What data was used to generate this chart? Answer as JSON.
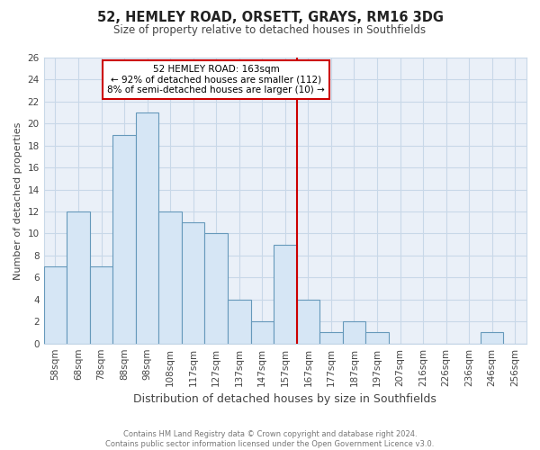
{
  "title": "52, HEMLEY ROAD, ORSETT, GRAYS, RM16 3DG",
  "subtitle": "Size of property relative to detached houses in Southfields",
  "xlabel": "Distribution of detached houses by size in Southfields",
  "ylabel": "Number of detached properties",
  "bar_labels": [
    "58sqm",
    "68sqm",
    "78sqm",
    "88sqm",
    "98sqm",
    "108sqm",
    "117sqm",
    "127sqm",
    "137sqm",
    "147sqm",
    "157sqm",
    "167sqm",
    "177sqm",
    "187sqm",
    "197sqm",
    "207sqm",
    "216sqm",
    "226sqm",
    "236sqm",
    "246sqm",
    "256sqm"
  ],
  "bar_values": [
    7,
    12,
    7,
    19,
    21,
    12,
    11,
    10,
    4,
    2,
    9,
    4,
    1,
    2,
    1,
    0,
    0,
    0,
    0,
    1,
    0
  ],
  "bar_color": "#d6e6f5",
  "bar_edge_color": "#6699bb",
  "marker_label": "52 HEMLEY ROAD: 163sqm",
  "annotation_line1": "← 92% of detached houses are smaller (112)",
  "annotation_line2": "8% of semi-detached houses are larger (10) →",
  "vline_color": "#cc0000",
  "annotation_box_edge": "#cc0000",
  "vline_index": 10.5,
  "ylim": [
    0,
    26
  ],
  "yticks": [
    0,
    2,
    4,
    6,
    8,
    10,
    12,
    14,
    16,
    18,
    20,
    22,
    24,
    26
  ],
  "footer_line1": "Contains HM Land Registry data © Crown copyright and database right 2024.",
  "footer_line2": "Contains public sector information licensed under the Open Government Licence v3.0.",
  "background_color": "#ffffff",
  "plot_bg_color": "#eaf0f8",
  "grid_color": "#c8d8e8"
}
